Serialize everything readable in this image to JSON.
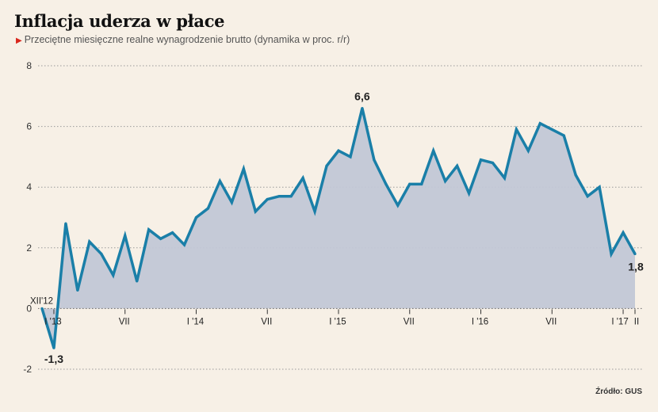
{
  "header": {
    "title": "Inflacja uderza w płace",
    "subtitle": "Przeciętne miesięczne realne wynagrodzenie brutto (dynamika w proc. r/r)"
  },
  "source": "Źródło: GUS",
  "colors": {
    "line": "#1a7fa8",
    "fill": "#c2c7d6",
    "background": "#f7f0e6",
    "marker": "#d9261c"
  },
  "chart_data": {
    "type": "area",
    "title": "Inflacja uderza w płace",
    "subtitle": "Przeciętne miesięczne realne wynagrodzenie brutto (dynamika w proc. r/r)",
    "xlabel": "",
    "ylabel": "",
    "ylim": [
      -2,
      8
    ],
    "yticks": [
      -2,
      0,
      2,
      4,
      6,
      8
    ],
    "grid": true,
    "x_tick_labels": [
      {
        "index": 0,
        "label": "XII'12"
      },
      {
        "index": 1,
        "label": "I '13"
      },
      {
        "index": 7,
        "label": "VII"
      },
      {
        "index": 13,
        "label": "I '14"
      },
      {
        "index": 19,
        "label": "VII"
      },
      {
        "index": 25,
        "label": "I '15"
      },
      {
        "index": 31,
        "label": "VII"
      },
      {
        "index": 37,
        "label": "I '16"
      },
      {
        "index": 43,
        "label": "VII"
      },
      {
        "index": 49,
        "label": "I '17"
      },
      {
        "index": 50,
        "label": "II"
      }
    ],
    "series": [
      {
        "values": [
          0.0,
          -1.3,
          2.8,
          0.6,
          2.2,
          1.8,
          1.1,
          2.4,
          0.9,
          2.6,
          2.3,
          2.5,
          2.1,
          3.0,
          3.3,
          4.2,
          3.5,
          4.6,
          3.2,
          3.6,
          3.7,
          3.7,
          4.3,
          3.2,
          4.7,
          5.2,
          5.0,
          6.6,
          4.9,
          4.1,
          3.4,
          4.1,
          4.1,
          5.2,
          4.2,
          4.7,
          3.8,
          4.9,
          4.8,
          4.3,
          5.9,
          5.2,
          6.1,
          5.9,
          5.7,
          4.4,
          3.7,
          4.0,
          1.8,
          2.5,
          1.8
        ]
      }
    ],
    "annotations": [
      {
        "index": 1,
        "label": "-1,3"
      },
      {
        "index": 27,
        "label": "6,6"
      },
      {
        "index": 50,
        "label": "1,8"
      }
    ]
  }
}
